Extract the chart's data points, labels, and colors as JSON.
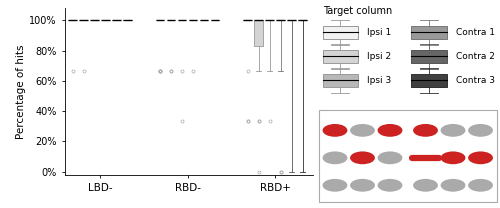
{
  "groups": [
    "LBD-",
    "RBD-",
    "RBD+"
  ],
  "series_names": [
    "Ipsi 1",
    "Ipsi 2",
    "Ipsi 3",
    "Contra 1",
    "Contra 2",
    "Contra 3"
  ],
  "colors": [
    "#f2f2f2",
    "#d4d4d4",
    "#b8b8b8",
    "#999999",
    "#666666",
    "#404040"
  ],
  "edge_colors": [
    "#999999",
    "#999999",
    "#999999",
    "#777777",
    "#555555",
    "#303030"
  ],
  "ylabel": "Percentage of hits",
  "yticks": [
    0,
    20,
    40,
    60,
    80,
    100
  ],
  "yticklabels": [
    "0%",
    "20%",
    "40%",
    "60%",
    "80%",
    "100%"
  ],
  "legend_title": "Target column",
  "boxplot_data": {
    "LBD-": {
      "Ipsi 1": {
        "med": 100,
        "q1": 100,
        "q3": 100,
        "whislo": 100,
        "whishi": 100,
        "fliers": [
          66.7
        ]
      },
      "Ipsi 2": {
        "med": 100,
        "q1": 100,
        "q3": 100,
        "whislo": 100,
        "whishi": 100,
        "fliers": [
          66.7
        ]
      },
      "Ipsi 3": {
        "med": 100,
        "q1": 100,
        "q3": 100,
        "whislo": 100,
        "whishi": 100,
        "fliers": []
      },
      "Contra 1": {
        "med": 100,
        "q1": 100,
        "q3": 100,
        "whislo": 100,
        "whishi": 100,
        "fliers": []
      },
      "Contra 2": {
        "med": 100,
        "q1": 100,
        "q3": 100,
        "whislo": 100,
        "whishi": 100,
        "fliers": []
      },
      "Contra 3": {
        "med": 100,
        "q1": 100,
        "q3": 100,
        "whislo": 100,
        "whishi": 100,
        "fliers": []
      }
    },
    "RBD-": {
      "Ipsi 1": {
        "med": 100,
        "q1": 100,
        "q3": 100,
        "whislo": 100,
        "whishi": 100,
        "fliers": [
          66.7,
          66.7,
          66.7,
          66.7
        ]
      },
      "Ipsi 2": {
        "med": 100,
        "q1": 100,
        "q3": 100,
        "whislo": 100,
        "whishi": 100,
        "fliers": [
          66.7,
          66.7
        ]
      },
      "Ipsi 3": {
        "med": 100,
        "q1": 100,
        "q3": 100,
        "whislo": 100,
        "whishi": 100,
        "fliers": [
          66.7,
          33.3
        ]
      },
      "Contra 1": {
        "med": 100,
        "q1": 100,
        "q3": 100,
        "whislo": 100,
        "whishi": 100,
        "fliers": [
          66.7
        ]
      },
      "Contra 2": {
        "med": 100,
        "q1": 100,
        "q3": 100,
        "whislo": 100,
        "whishi": 100,
        "fliers": []
      },
      "Contra 3": {
        "med": 100,
        "q1": 100,
        "q3": 100,
        "whislo": 100,
        "whishi": 100,
        "fliers": []
      }
    },
    "RBD+": {
      "Ipsi 1": {
        "med": 100,
        "q1": 100,
        "q3": 100,
        "whislo": 100,
        "whishi": 100,
        "fliers": [
          66.7,
          33.3,
          33.3
        ]
      },
      "Ipsi 2": {
        "med": 100,
        "q1": 83.3,
        "q3": 100,
        "whislo": 66.7,
        "whishi": 100,
        "fliers": [
          33.3,
          33.3,
          0
        ]
      },
      "Ipsi 3": {
        "med": 100,
        "q1": 100,
        "q3": 100,
        "whislo": 66.7,
        "whishi": 100,
        "fliers": [
          33.3
        ]
      },
      "Contra 1": {
        "med": 100,
        "q1": 100,
        "q3": 100,
        "whislo": 66.7,
        "whishi": 100,
        "fliers": [
          0,
          0
        ]
      },
      "Contra 2": {
        "med": 100,
        "q1": 100,
        "q3": 100,
        "whislo": 0,
        "whishi": 100,
        "fliers": []
      },
      "Contra 3": {
        "med": 100,
        "q1": 100,
        "q3": 100,
        "whislo": 0,
        "whishi": 100,
        "fliers": []
      }
    }
  },
  "dot_diagram": {
    "rows": 3,
    "cols": 6,
    "red_circles": [
      [
        0,
        0
      ],
      [
        0,
        2
      ],
      [
        0,
        3
      ],
      [
        1,
        1
      ],
      [
        1,
        4
      ],
      [
        1,
        5
      ]
    ],
    "red_bar": [
      1,
      3
    ],
    "gray_circles": [
      [
        0,
        1
      ],
      [
        0,
        4
      ],
      [
        0,
        5
      ],
      [
        1,
        0
      ],
      [
        1,
        2
      ],
      [
        2,
        0
      ],
      [
        2,
        1
      ],
      [
        2,
        2
      ],
      [
        2,
        3
      ],
      [
        2,
        4
      ],
      [
        2,
        5
      ]
    ]
  }
}
